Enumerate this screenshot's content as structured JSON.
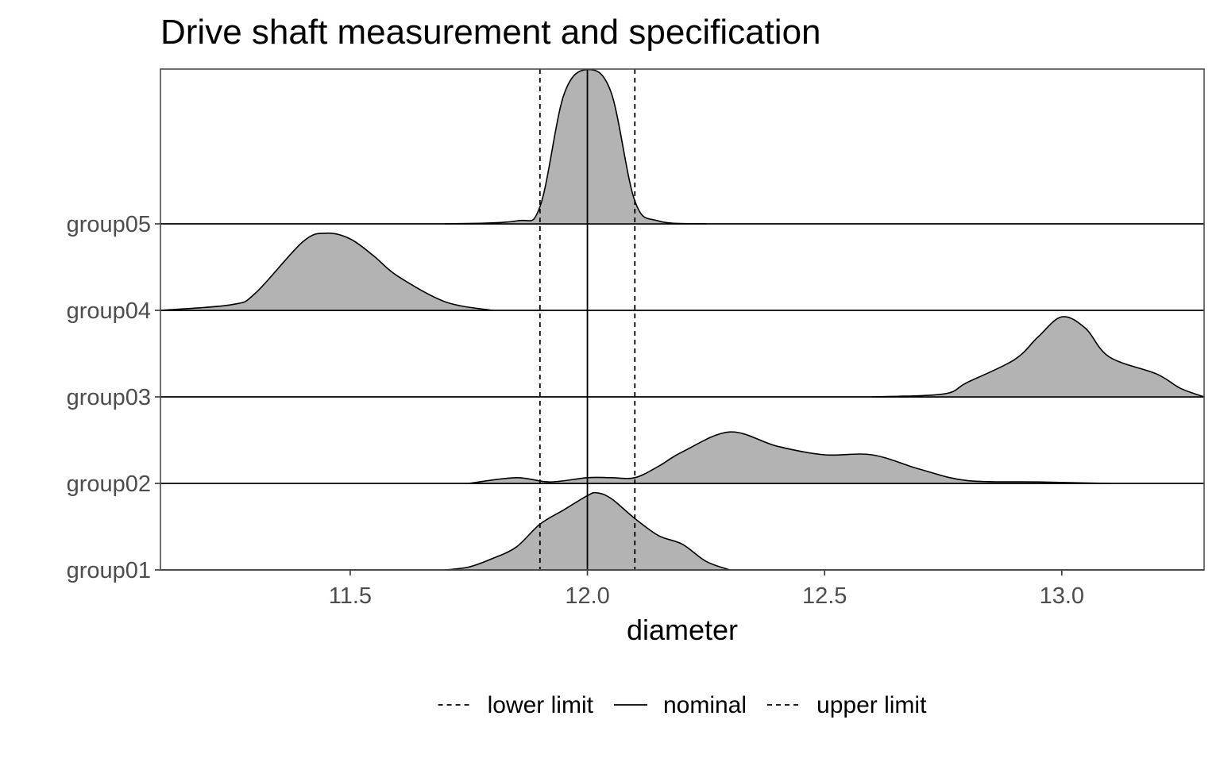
{
  "chart_data": {
    "type": "ridgeline",
    "title": "Drive shaft measurement and specification",
    "xlabel": "diameter",
    "ylabel": "",
    "xlim": [
      11.1,
      13.3
    ],
    "x_ticks": [
      "11.5",
      "12.0",
      "12.5",
      "13.0"
    ],
    "categories": [
      "group01",
      "group02",
      "group03",
      "group04",
      "group05"
    ],
    "ridge_fill": "#b3b3b3",
    "grid": false,
    "legend_position": "bottom",
    "reference_lines": [
      {
        "label": "lower limit",
        "x": 11.9,
        "style": "dashed"
      },
      {
        "label": "nominal",
        "x": 12.0,
        "style": "solid"
      },
      {
        "label": "upper limit",
        "x": 12.1,
        "style": "dashed"
      }
    ],
    "series": [
      {
        "group": "group01",
        "x": [
          11.7,
          11.75,
          11.8,
          11.85,
          11.9,
          11.95,
          12.0,
          12.02,
          12.05,
          12.1,
          12.15,
          12.2,
          12.25,
          12.3
        ],
        "density": [
          0.0,
          0.1,
          0.4,
          0.8,
          1.6,
          2.1,
          2.6,
          2.7,
          2.5,
          1.8,
          1.2,
          0.9,
          0.3,
          0.0
        ]
      },
      {
        "group": "group02",
        "x": [
          11.75,
          11.85,
          11.92,
          12.0,
          12.05,
          12.1,
          12.15,
          12.2,
          12.3,
          12.4,
          12.5,
          12.6,
          12.7,
          12.8,
          12.95,
          13.1
        ],
        "density": [
          0.0,
          0.2,
          0.05,
          0.2,
          0.2,
          0.2,
          0.6,
          1.1,
          1.8,
          1.3,
          1.0,
          1.0,
          0.5,
          0.1,
          0.05,
          0.0
        ]
      },
      {
        "group": "group03",
        "x": [
          12.6,
          12.75,
          12.8,
          12.9,
          12.95,
          13.0,
          13.05,
          13.1,
          13.2,
          13.25,
          13.3
        ],
        "density": [
          0.0,
          0.1,
          0.5,
          1.3,
          2.1,
          2.8,
          2.4,
          1.4,
          0.8,
          0.3,
          0.0
        ]
      },
      {
        "group": "group04",
        "x": [
          11.1,
          11.25,
          11.3,
          11.4,
          11.45,
          11.5,
          11.55,
          11.6,
          11.7,
          11.8
        ],
        "density": [
          0.0,
          0.2,
          0.6,
          2.4,
          2.7,
          2.5,
          1.9,
          1.2,
          0.3,
          0.0
        ]
      },
      {
        "group": "group05",
        "x": [
          11.7,
          11.85,
          11.9,
          11.95,
          12.0,
          12.05,
          12.1,
          12.15,
          12.25
        ],
        "density": [
          0.0,
          0.1,
          0.6,
          4.5,
          5.4,
          4.6,
          0.8,
          0.1,
          0.0
        ]
      }
    ]
  }
}
